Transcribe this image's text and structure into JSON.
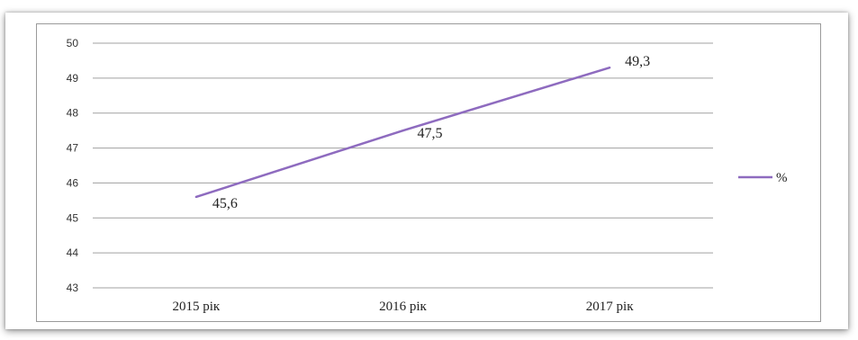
{
  "chart_data": {
    "type": "line",
    "categories": [
      "2015 рік",
      "2016 рік",
      "2017 рік"
    ],
    "series": [
      {
        "name": "%",
        "values": [
          45.6,
          47.5,
          49.3
        ],
        "labels": [
          "45,6",
          "47,5",
          "49,3"
        ],
        "color": "#8e6bbf"
      }
    ],
    "ylim": [
      43,
      50
    ],
    "yticks": [
      "43",
      "44",
      "45",
      "46",
      "47",
      "48",
      "49",
      "50"
    ],
    "grid": true,
    "legend_position": "right"
  }
}
